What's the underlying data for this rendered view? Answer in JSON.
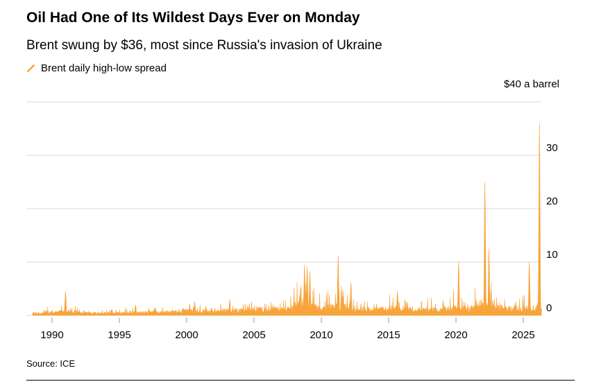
{
  "header": {
    "title": "Oil Had One of Its Wildest Days Ever on Monday",
    "subtitle": "Brent swung by $36, most since Russia's invasion of Ukraine"
  },
  "legend": {
    "label": "Brent daily high-low spread",
    "color": "#F7A43A"
  },
  "axis": {
    "y_unit_label": "$40 a barrel",
    "y_ticks": [
      0,
      10,
      20,
      30
    ],
    "y_gridlines": [
      0,
      10,
      20,
      30,
      40
    ],
    "x_ticks": [
      1990,
      1995,
      2000,
      2005,
      2010,
      2015,
      2020,
      2025
    ]
  },
  "source": "Source: ICE",
  "chart_data": {
    "type": "area",
    "title": "Brent daily high-low spread",
    "xlabel": "",
    "ylabel": "$40 a barrel",
    "series_name": "Brent daily high-low spread",
    "color": "#F7A43A",
    "xlim": [
      1988.5,
      2026.5
    ],
    "ylim": [
      0,
      40
    ],
    "x_ticks": [
      1990,
      1995,
      2000,
      2005,
      2010,
      2015,
      2020,
      2025
    ],
    "y_ticks": [
      0,
      10,
      20,
      30,
      40
    ],
    "grid": "horizontal",
    "legend_position": "top-left",
    "envelope": {
      "x": [
        1988.5,
        1989,
        1990,
        1991,
        1992,
        1993,
        1994,
        1995,
        1996,
        1997,
        1998,
        1999,
        2000,
        2001,
        2002,
        2003,
        2004,
        2005,
        2006,
        2007,
        2008,
        2008.7,
        2009,
        2010,
        2011,
        2012,
        2013,
        2014,
        2015,
        2016,
        2017,
        2018,
        2019,
        2020,
        2021,
        2022,
        2023,
        2024,
        2025,
        2026,
        2026.4
      ],
      "typical": [
        0.5,
        0.5,
        0.7,
        0.9,
        0.5,
        0.45,
        0.5,
        0.5,
        0.6,
        0.6,
        0.7,
        0.7,
        1.0,
        0.9,
        0.8,
        1.0,
        1.1,
        1.2,
        1.2,
        1.3,
        2.0,
        2.4,
        2.0,
        1.5,
        1.9,
        1.7,
        1.2,
        1.2,
        1.5,
        1.5,
        1.0,
        1.2,
        1.2,
        1.7,
        1.3,
        2.5,
        1.7,
        1.4,
        1.5,
        1.5,
        1.5
      ],
      "max": [
        1.2,
        1.2,
        2.0,
        3.2,
        1.3,
        1.1,
        1.2,
        1.2,
        1.6,
        1.4,
        1.6,
        1.8,
        2.5,
        2.4,
        1.8,
        2.6,
        2.2,
        2.8,
        2.4,
        2.8,
        6.5,
        8.0,
        7.0,
        4.0,
        6.5,
        5.0,
        3.0,
        3.2,
        4.2,
        3.8,
        2.2,
        3.5,
        3.8,
        5.5,
        3.2,
        9.0,
        4.5,
        3.5,
        4.5,
        3.5,
        3.5
      ]
    },
    "spikes": [
      {
        "x": 1991.0,
        "value": 4.5
      },
      {
        "x": 1996.2,
        "value": 2.0
      },
      {
        "x": 2000.6,
        "value": 2.6
      },
      {
        "x": 2003.2,
        "value": 3.0
      },
      {
        "x": 2008.75,
        "value": 9.5
      },
      {
        "x": 2008.95,
        "value": 9.2
      },
      {
        "x": 2009.15,
        "value": 8.3
      },
      {
        "x": 2011.25,
        "value": 11.2
      },
      {
        "x": 2012.2,
        "value": 6.2
      },
      {
        "x": 2015.65,
        "value": 4.6
      },
      {
        "x": 2020.2,
        "value": 10.2
      },
      {
        "x": 2022.15,
        "value": 25.0
      },
      {
        "x": 2022.45,
        "value": 12.5
      },
      {
        "x": 2025.45,
        "value": 10.0
      },
      {
        "x": 2026.2,
        "value": 36.0
      }
    ]
  }
}
